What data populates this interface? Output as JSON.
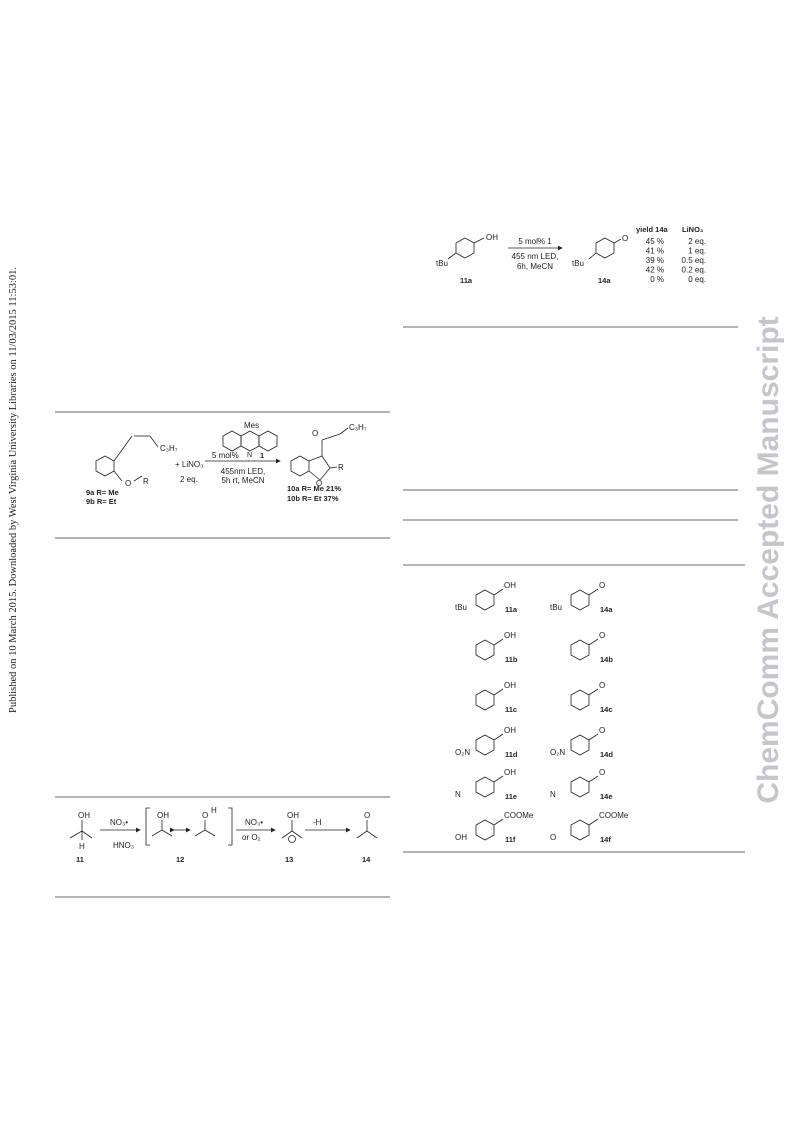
{
  "side_note": "Published on 10 March 2015. Downloaded by West Virginia University Libraries on 11/03/2015 11:53:01.",
  "watermark": "ChemComm Accepted Manuscript",
  "scheme_oxidation": {
    "substrate": "11a",
    "substrate_tbu": "tBu",
    "substrate_oh": "OH",
    "conditions": [
      "5 mol% 1",
      "455 nm LED,",
      "6h, MeCN"
    ],
    "product": "14a",
    "product_tbu": "tBu",
    "product_o": "O",
    "headers": [
      "yield 14a",
      "LiNO₃"
    ],
    "rows": [
      [
        "45 %",
        "2 eq."
      ],
      [
        "41 %",
        "1 eq."
      ],
      [
        "39 %",
        "0.5 eq."
      ],
      [
        "42 %",
        "0.2 eq."
      ],
      [
        "0 %",
        "0 eq."
      ]
    ]
  },
  "scheme_cyclization": {
    "chain": "C₃H₇",
    "o": "O",
    "r": "R",
    "substrates": [
      "9a R= Me",
      "9b R= Et"
    ],
    "reagent": "+ LiNO₃",
    "reagent_eq": "2 eq.",
    "catalyst": "Mes",
    "catalyst_n": "N",
    "catalyst_number": "1",
    "conditions": [
      "5 mol%",
      "455nm LED,",
      "5h rt, MeCN"
    ],
    "product_chain": "C₃H₇",
    "product_co": "O",
    "product_ring_o": "O",
    "product_r": "R",
    "products": [
      "10a R= Me 21%",
      "10b R= Et 37%"
    ]
  },
  "scheme_mechanism": {
    "oh_11": "OH",
    "h_11": "H",
    "label_11": "11",
    "step1_above": "NO₃•",
    "step1_below": "HNO₃",
    "oh_12": "OH",
    "o_12": "O",
    "h_12": "H",
    "label_12": "12",
    "step2_above": "NO₃•",
    "step2_below": "or O₂",
    "oh_13": "OH",
    "label_13": "13",
    "step3_above": "-H",
    "o_14": "O",
    "label_14": "14"
  },
  "substrate_table": {
    "rows": [
      {
        "alcohol": "11a",
        "ketone": "14a",
        "atoms": [
          "tBu",
          "OH",
          "tBu",
          "O"
        ]
      },
      {
        "alcohol": "11b",
        "ketone": "14b",
        "atoms": [
          "OH",
          "O"
        ]
      },
      {
        "alcohol": "11c",
        "ketone": "14c",
        "atoms": [
          "OH",
          "O"
        ]
      },
      {
        "alcohol": "11d",
        "ketone": "14d",
        "atoms": [
          "O₂N",
          "OH",
          "O₂N",
          "O"
        ]
      },
      {
        "alcohol": "11e",
        "ketone": "14e",
        "atoms": [
          "N",
          "OH",
          "N",
          "O"
        ]
      },
      {
        "alcohol": "11f",
        "ketone": "14f",
        "atoms": [
          "OH",
          "COOMe",
          "O",
          "COOMe"
        ]
      }
    ]
  }
}
